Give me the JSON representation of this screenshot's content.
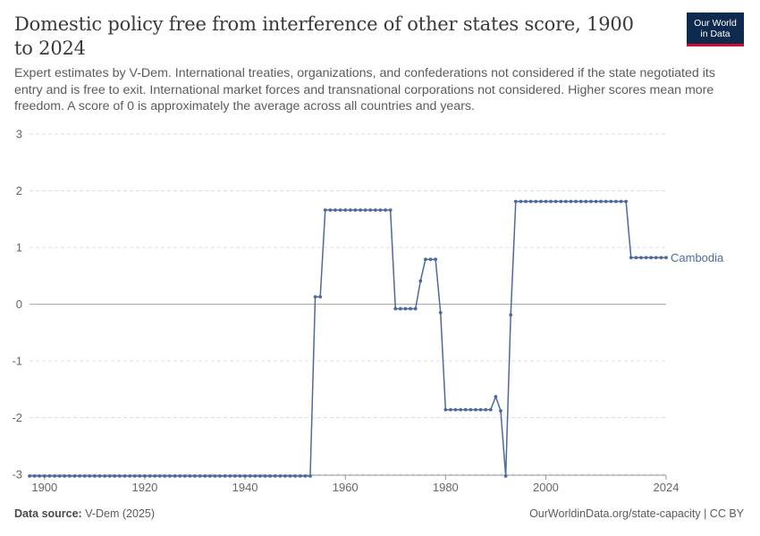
{
  "header": {
    "title": "Domestic policy free from interference of other states score, 1900 to 2024",
    "subtitle": "Expert estimates by V-Dem. International treaties, organizations, and confederations not considered if the state negotiated its entry and is free to exit. International market forces and transnational corporations not considered. Higher scores mean more freedom. A score of 0 is approximately the average across all countries and years.",
    "logo_line1": "Our World",
    "logo_line2": "in Data"
  },
  "footer": {
    "source_label": "Data source:",
    "source_value": "V-Dem (2025)",
    "url": "OurWorldinData.org/state-capacity | CC BY"
  },
  "colors": {
    "series": "#4c6a9c",
    "grid": "#dddddd",
    "zero_line": "#aaaaaa",
    "logo_bg": "#0e2a4e",
    "logo_accent": "#c8102e"
  },
  "chart_data": {
    "type": "line",
    "title": "Domestic policy free from interference of other states score, 1900 to 2024",
    "xlim": [
      1897,
      2024
    ],
    "ylim": [
      -3,
      3
    ],
    "x_ticks": [
      1900,
      1920,
      1940,
      1960,
      1980,
      2000,
      2024
    ],
    "y_ticks": [
      3,
      2,
      1,
      0,
      -1,
      -2,
      -3
    ],
    "grid": "horizontal dashed",
    "legend": "line-end label",
    "series": [
      {
        "name": "Cambodia",
        "points": [
          [
            1897,
            -3.03
          ],
          [
            1898,
            -3.03
          ],
          [
            1899,
            -3.03
          ],
          [
            1900,
            -3.03
          ],
          [
            1901,
            -3.03
          ],
          [
            1902,
            -3.03
          ],
          [
            1903,
            -3.03
          ],
          [
            1904,
            -3.03
          ],
          [
            1905,
            -3.03
          ],
          [
            1906,
            -3.03
          ],
          [
            1907,
            -3.03
          ],
          [
            1908,
            -3.03
          ],
          [
            1909,
            -3.03
          ],
          [
            1910,
            -3.03
          ],
          [
            1911,
            -3.03
          ],
          [
            1912,
            -3.03
          ],
          [
            1913,
            -3.03
          ],
          [
            1914,
            -3.03
          ],
          [
            1915,
            -3.03
          ],
          [
            1916,
            -3.03
          ],
          [
            1917,
            -3.03
          ],
          [
            1918,
            -3.03
          ],
          [
            1919,
            -3.03
          ],
          [
            1920,
            -3.03
          ],
          [
            1921,
            -3.03
          ],
          [
            1922,
            -3.03
          ],
          [
            1923,
            -3.03
          ],
          [
            1924,
            -3.03
          ],
          [
            1925,
            -3.03
          ],
          [
            1926,
            -3.03
          ],
          [
            1927,
            -3.03
          ],
          [
            1928,
            -3.03
          ],
          [
            1929,
            -3.03
          ],
          [
            1930,
            -3.03
          ],
          [
            1931,
            -3.03
          ],
          [
            1932,
            -3.03
          ],
          [
            1933,
            -3.03
          ],
          [
            1934,
            -3.03
          ],
          [
            1935,
            -3.03
          ],
          [
            1936,
            -3.03
          ],
          [
            1937,
            -3.03
          ],
          [
            1938,
            -3.03
          ],
          [
            1939,
            -3.03
          ],
          [
            1940,
            -3.03
          ],
          [
            1941,
            -3.03
          ],
          [
            1942,
            -3.03
          ],
          [
            1943,
            -3.03
          ],
          [
            1944,
            -3.03
          ],
          [
            1945,
            -3.03
          ],
          [
            1946,
            -3.03
          ],
          [
            1947,
            -3.03
          ],
          [
            1948,
            -3.03
          ],
          [
            1949,
            -3.03
          ],
          [
            1950,
            -3.03
          ],
          [
            1951,
            -3.03
          ],
          [
            1952,
            -3.03
          ],
          [
            1953,
            -3.03
          ],
          [
            1954,
            0.13
          ],
          [
            1955,
            0.13
          ],
          [
            1956,
            1.66
          ],
          [
            1957,
            1.66
          ],
          [
            1958,
            1.66
          ],
          [
            1959,
            1.66
          ],
          [
            1960,
            1.66
          ],
          [
            1961,
            1.66
          ],
          [
            1962,
            1.66
          ],
          [
            1963,
            1.66
          ],
          [
            1964,
            1.66
          ],
          [
            1965,
            1.66
          ],
          [
            1966,
            1.66
          ],
          [
            1967,
            1.66
          ],
          [
            1968,
            1.66
          ],
          [
            1969,
            1.66
          ],
          [
            1970,
            -0.08
          ],
          [
            1971,
            -0.08
          ],
          [
            1972,
            -0.08
          ],
          [
            1973,
            -0.08
          ],
          [
            1974,
            -0.08
          ],
          [
            1975,
            0.41
          ],
          [
            1976,
            0.79
          ],
          [
            1977,
            0.79
          ],
          [
            1978,
            0.79
          ],
          [
            1979,
            -0.15
          ],
          [
            1980,
            -1.86
          ],
          [
            1981,
            -1.86
          ],
          [
            1982,
            -1.86
          ],
          [
            1983,
            -1.86
          ],
          [
            1984,
            -1.86
          ],
          [
            1985,
            -1.86
          ],
          [
            1986,
            -1.86
          ],
          [
            1987,
            -1.86
          ],
          [
            1988,
            -1.86
          ],
          [
            1989,
            -1.86
          ],
          [
            1990,
            -1.63
          ],
          [
            1991,
            -1.88
          ],
          [
            1992,
            -3.03
          ],
          [
            1993,
            -0.19
          ],
          [
            1994,
            1.81
          ],
          [
            1995,
            1.81
          ],
          [
            1996,
            1.81
          ],
          [
            1997,
            1.81
          ],
          [
            1998,
            1.81
          ],
          [
            1999,
            1.81
          ],
          [
            2000,
            1.81
          ],
          [
            2001,
            1.81
          ],
          [
            2002,
            1.81
          ],
          [
            2003,
            1.81
          ],
          [
            2004,
            1.81
          ],
          [
            2005,
            1.81
          ],
          [
            2006,
            1.81
          ],
          [
            2007,
            1.81
          ],
          [
            2008,
            1.81
          ],
          [
            2009,
            1.81
          ],
          [
            2010,
            1.81
          ],
          [
            2011,
            1.81
          ],
          [
            2012,
            1.81
          ],
          [
            2013,
            1.81
          ],
          [
            2014,
            1.81
          ],
          [
            2015,
            1.81
          ],
          [
            2016,
            1.81
          ],
          [
            2017,
            0.82
          ],
          [
            2018,
            0.82
          ],
          [
            2019,
            0.82
          ],
          [
            2020,
            0.82
          ],
          [
            2021,
            0.82
          ],
          [
            2022,
            0.82
          ],
          [
            2023,
            0.82
          ],
          [
            2024,
            0.82
          ]
        ]
      }
    ]
  }
}
